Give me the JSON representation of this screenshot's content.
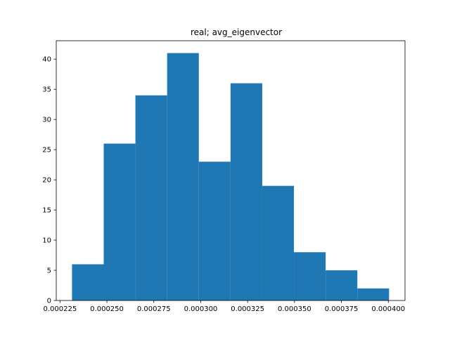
{
  "chart_data": {
    "type": "bar",
    "title": "real; avg_eigenvector",
    "xlabel": "",
    "ylabel": "",
    "bin_edges": [
      0.0002314,
      0.0002483,
      0.0002652,
      0.0002821,
      0.000299,
      0.0003159,
      0.0003328,
      0.0003497,
      0.0003666,
      0.0003835,
      0.0004004
    ],
    "values": [
      6,
      26,
      34,
      41,
      23,
      36,
      19,
      8,
      5,
      2
    ],
    "xlim": [
      0.000223,
      0.0004089
    ],
    "ylim": [
      0,
      43.05
    ],
    "xticks": [
      0.000225,
      0.00025,
      0.000275,
      0.0003,
      0.000325,
      0.00035,
      0.000375,
      0.0004
    ],
    "xtick_labels": [
      "0.000225",
      "0.000250",
      "0.000275",
      "0.000300",
      "0.000325",
      "0.000350",
      "0.000375",
      "0.000400"
    ],
    "yticks": [
      0,
      5,
      10,
      15,
      20,
      25,
      30,
      35,
      40
    ],
    "ytick_labels": [
      "0",
      "5",
      "10",
      "15",
      "20",
      "25",
      "30",
      "35",
      "40"
    ],
    "bar_color": "#1f77b4",
    "grid": false,
    "legend": "none"
  }
}
